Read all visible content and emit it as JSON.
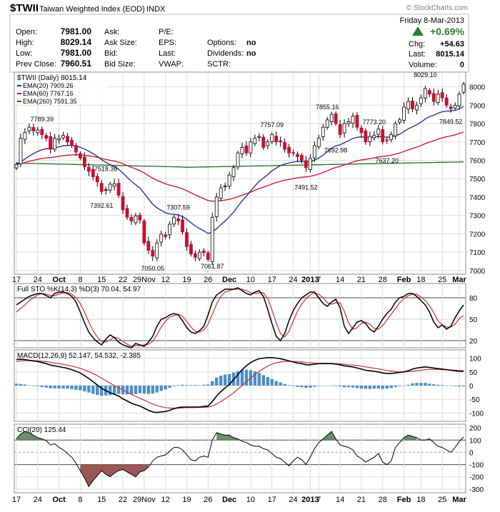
{
  "header": {
    "symbol": "$TWII",
    "name": "Taiwan Weighted Index (EOD)",
    "exchange": "INDX",
    "copyright": "© StockCharts.com",
    "date": "Friday   8-Mar-2013",
    "change_pct": "+0.69%",
    "chg_label": "Chg:",
    "chg_value": "+54.63",
    "last_label": "Last:",
    "last_value": "8015.14",
    "volume_label": "Volume:",
    "volume_value": "0"
  },
  "quote": {
    "rows": [
      {
        "l1": "Open:",
        "v1": "7981.00",
        "l2": "Ask:",
        "v2": "",
        "l3": "P/E:",
        "v3": "",
        "l4": "",
        "v4": ""
      },
      {
        "l1": "High:",
        "v1": "8029.14",
        "l2": "Ask Size:",
        "v2": "",
        "l3": "EPS:",
        "v3": "",
        "l4": "Options:",
        "v4": "no"
      },
      {
        "l1": "Low:",
        "v1": "7981.00",
        "l2": "Bid:",
        "v2": "",
        "l3": "Last:",
        "v3": "",
        "l4": "Dividends:",
        "v4": "no"
      },
      {
        "l1": "Prev Close:",
        "v1": "7960.51",
        "l2": "Bid Size:",
        "v2": "",
        "l3": "VWAP:",
        "v3": "",
        "l4": "SCTR:",
        "v4": ""
      }
    ]
  },
  "colors": {
    "up": "#ffffff",
    "down": "#c8102e",
    "ema20": "#1f2a8c",
    "ema60": "#c8102e",
    "ema260": "#1d6e1d",
    "sto_k": "#000000",
    "sto_d": "#d0302a",
    "macd": "#000000",
    "signal": "#d0302a",
    "hist": "#4b8ec8",
    "cci_pos": "#4f7d4f",
    "cci_neg": "#8b3a3a",
    "arrow": "#2e7d32"
  },
  "chart_data": [
    {
      "type": "candlestick",
      "title": "$TWII (Daily) 8015.14",
      "legend": [
        {
          "name": "EMA(20) 7909.26",
          "color": "#1f2a8c"
        },
        {
          "name": "EMA(60) 7767.16",
          "color": "#c8102e"
        },
        {
          "name": "EMA(260) 7591.35",
          "color": "#1d6e1d"
        }
      ],
      "ylim": [
        6980,
        8080
      ],
      "yticks": [
        7000,
        7100,
        7200,
        7300,
        7400,
        7500,
        7600,
        7700,
        7800,
        7900,
        8000
      ],
      "x_tick_labels": [
        {
          "i": 0,
          "label": "17"
        },
        {
          "i": 5,
          "label": "24"
        },
        {
          "i": 10,
          "label": "Oct"
        },
        {
          "i": 15,
          "label": "8"
        },
        {
          "i": 20,
          "label": "15"
        },
        {
          "i": 25,
          "label": "22"
        },
        {
          "i": 30,
          "label": "29Nov"
        },
        {
          "i": 35,
          "label": "12"
        },
        {
          "i": 40,
          "label": "19"
        },
        {
          "i": 45,
          "label": "26"
        },
        {
          "i": 50,
          "label": "Dec"
        },
        {
          "i": 55,
          "label": "10"
        },
        {
          "i": 60,
          "label": "17"
        },
        {
          "i": 65,
          "label": "24"
        },
        {
          "i": 69,
          "label": "2013"
        },
        {
          "i": 71,
          "label": "7"
        },
        {
          "i": 76,
          "label": "14"
        },
        {
          "i": 81,
          "label": "21"
        },
        {
          "i": 86,
          "label": "28"
        },
        {
          "i": 91,
          "label": "Feb"
        },
        {
          "i": 95,
          "label": "18"
        },
        {
          "i": 100,
          "label": "25"
        },
        {
          "i": 104,
          "label": "Mar"
        }
      ],
      "annotations": [
        {
          "i": 6,
          "price": 7789.39,
          "label": "7789.39",
          "pos": "above"
        },
        {
          "i": 21,
          "price": 7518.36,
          "label": "7518.36",
          "pos": "above"
        },
        {
          "i": 20,
          "price": 7392.61,
          "label": "7392.61",
          "pos": "below"
        },
        {
          "i": 38,
          "price": 7307.59,
          "label": "7307.59",
          "pos": "above"
        },
        {
          "i": 32,
          "price": 7050.05,
          "label": "7050.05",
          "pos": "below"
        },
        {
          "i": 46,
          "price": 7061.87,
          "label": "7061.87",
          "pos": "below"
        },
        {
          "i": 60,
          "price": 7757.09,
          "label": "7757.09",
          "pos": "above"
        },
        {
          "i": 68,
          "price": 7491.52,
          "label": "7491.52",
          "pos": "below"
        },
        {
          "i": 73,
          "price": 7855.16,
          "label": "7855.16",
          "pos": "above"
        },
        {
          "i": 75,
          "price": 7692.98,
          "label": "7692.98",
          "pos": "below"
        },
        {
          "i": 84,
          "price": 7773.2,
          "label": "7773.20",
          "pos": "above"
        },
        {
          "i": 87,
          "price": 7637.2,
          "label": "7637.20",
          "pos": "below"
        },
        {
          "i": 96,
          "price": 8029.1,
          "label": "8029.10",
          "pos": "above"
        },
        {
          "i": 102,
          "price": 7849.52,
          "label": "7849.52",
          "pos": "below"
        }
      ],
      "closes": [
        7578,
        7720,
        7752,
        7780,
        7760,
        7765,
        7740,
        7720,
        7660,
        7720,
        7718,
        7735,
        7700,
        7680,
        7645,
        7612,
        7565,
        7540,
        7510,
        7482,
        7430,
        7440,
        7470,
        7472,
        7410,
        7330,
        7290,
        7270,
        7298,
        7275,
        7150,
        7110,
        7078,
        7150,
        7198,
        7185,
        7252,
        7290,
        7270,
        7210,
        7130,
        7090,
        7072,
        7100,
        7098,
        7060,
        7290,
        7400,
        7450,
        7460,
        7520,
        7560,
        7640,
        7670,
        7640,
        7700,
        7720,
        7730,
        7670,
        7700,
        7740,
        7700,
        7700,
        7660,
        7640,
        7640,
        7620,
        7600,
        7560,
        7610,
        7680,
        7720,
        7780,
        7820,
        7850,
        7800,
        7740,
        7800,
        7810,
        7840,
        7780,
        7750,
        7700,
        7730,
        7735,
        7770,
        7700,
        7710,
        7740,
        7800,
        7820,
        7890,
        7920,
        7880,
        7900,
        7940,
        7990,
        7960,
        7920,
        7960,
        7940,
        7900,
        7880,
        7900,
        7960,
        8015
      ]
    },
    {
      "type": "line",
      "title": "Full STO %K(14,3) %D(3) 70.04, 54.97",
      "series": [
        {
          "name": "%K"
        },
        {
          "name": "%D"
        }
      ],
      "ylim": [
        10,
        100
      ],
      "yticks": [
        20,
        50,
        80
      ],
      "k": [
        70,
        74,
        78,
        82,
        84,
        86,
        86,
        83,
        80,
        86,
        88,
        88,
        86,
        82,
        74,
        60,
        45,
        32,
        24,
        18,
        14,
        22,
        28,
        24,
        18,
        14,
        12,
        10,
        16,
        14,
        12,
        18,
        26,
        40,
        50,
        52,
        56,
        58,
        56,
        48,
        38,
        32,
        30,
        34,
        40,
        56,
        74,
        84,
        88,
        92,
        92,
        92,
        94,
        90,
        86,
        84,
        88,
        90,
        82,
        64,
        44,
        26,
        20,
        30,
        48,
        62,
        72,
        80,
        84,
        88,
        88,
        80,
        72,
        68,
        74,
        78,
        66,
        40,
        30,
        38,
        46,
        48,
        44,
        36,
        32,
        40,
        50,
        58,
        64,
        74,
        80,
        82,
        86,
        86,
        82,
        76,
        70,
        60,
        46,
        38,
        42,
        36,
        40,
        52,
        62,
        70
      ],
      "d": [
        60,
        65,
        70,
        76,
        80,
        84,
        86,
        85,
        83,
        83,
        85,
        87,
        87,
        85,
        80,
        72,
        60,
        46,
        34,
        25,
        19,
        18,
        21,
        25,
        23,
        19,
        15,
        12,
        13,
        13,
        14,
        15,
        19,
        28,
        39,
        47,
        53,
        55,
        57,
        54,
        47,
        39,
        33,
        32,
        35,
        43,
        57,
        71,
        82,
        88,
        90,
        92,
        92,
        92,
        90,
        87,
        86,
        87,
        87,
        79,
        63,
        45,
        30,
        25,
        33,
        47,
        61,
        71,
        79,
        84,
        87,
        85,
        80,
        73,
        71,
        73,
        73,
        61,
        45,
        36,
        38,
        44,
        46,
        43,
        37,
        36,
        41,
        49,
        57,
        65,
        73,
        79,
        83,
        85,
        85,
        81,
        76,
        69,
        59,
        48,
        42,
        39,
        39,
        43,
        51,
        55
      ]
    },
    {
      "type": "line",
      "title": "MACD(12,26,9) 52.147, 54.532, -2.385",
      "series": [
        {
          "name": "MACD"
        },
        {
          "name": "Signal"
        },
        {
          "name": "Histogram"
        }
      ],
      "ylim": [
        -130,
        130
      ],
      "yticks": [
        -100,
        -50,
        0,
        50,
        100
      ],
      "macd": [
        95,
        96,
        95,
        92,
        90,
        88,
        84,
        80,
        75,
        72,
        69,
        66,
        63,
        58,
        52,
        46,
        36,
        26,
        14,
        2,
        -10,
        -18,
        -26,
        -32,
        -38,
        -48,
        -56,
        -64,
        -70,
        -74,
        -82,
        -90,
        -96,
        -98,
        -96,
        -94,
        -90,
        -84,
        -80,
        -78,
        -78,
        -78,
        -78,
        -78,
        -76,
        -74,
        -58,
        -38,
        -22,
        -8,
        4,
        22,
        40,
        58,
        72,
        84,
        92,
        98,
        100,
        102,
        102,
        100,
        98,
        94,
        90,
        86,
        82,
        80,
        76,
        76,
        78,
        80,
        80,
        80,
        80,
        78,
        76,
        72,
        70,
        68,
        64,
        60,
        56,
        54,
        52,
        50,
        46,
        44,
        44,
        46,
        48,
        50,
        54,
        60,
        64,
        66,
        68,
        66,
        64,
        62,
        60,
        58,
        56,
        54,
        52,
        52
      ],
      "signal": [
        88,
        90,
        91,
        91,
        91,
        90,
        89,
        87,
        85,
        82,
        80,
        77,
        74,
        71,
        67,
        63,
        57,
        51,
        44,
        36,
        27,
        18,
        9,
        0,
        -8,
        -16,
        -24,
        -32,
        -39,
        -46,
        -53,
        -60,
        -67,
        -73,
        -77,
        -80,
        -82,
        -82,
        -82,
        -81,
        -80,
        -80,
        -80,
        -79,
        -79,
        -78,
        -74,
        -67,
        -58,
        -48,
        -38,
        -26,
        -13,
        0,
        14,
        28,
        40,
        52,
        62,
        71,
        78,
        83,
        86,
        88,
        88,
        88,
        87,
        86,
        84,
        83,
        82,
        81,
        81,
        81,
        81,
        80,
        79,
        78,
        76,
        75,
        73,
        71,
        68,
        66,
        63,
        61,
        58,
        55,
        53,
        51,
        50,
        50,
        51,
        52,
        54,
        56,
        58,
        59,
        59,
        59,
        58,
        58,
        57,
        56,
        55,
        54.5
      ]
    },
    {
      "type": "area",
      "title": "CCI(20) 125.44",
      "ylim": [
        -330,
        230
      ],
      "yticks": [
        -300,
        -200,
        -100,
        0,
        100,
        200
      ],
      "values": [
        110,
        150,
        170,
        160,
        140,
        120,
        110,
        95,
        60,
        70,
        40,
        20,
        -10,
        -40,
        -90,
        -150,
        -210,
        -280,
        -230,
        -190,
        -150,
        -180,
        -200,
        -170,
        -150,
        -140,
        -160,
        -180,
        -200,
        -160,
        -150,
        -120,
        -70,
        -40,
        -30,
        -20,
        10,
        40,
        40,
        20,
        -20,
        -60,
        -70,
        -40,
        -30,
        -40,
        100,
        160,
        150,
        140,
        140,
        120,
        110,
        90,
        80,
        60,
        50,
        50,
        30,
        20,
        -10,
        -40,
        -50,
        -80,
        -110,
        -70,
        -40,
        -60,
        -100,
        -40,
        30,
        80,
        110,
        140,
        170,
        110,
        60,
        50,
        40,
        20,
        -30,
        -50,
        -80,
        -60,
        -40,
        -10,
        -80,
        -100,
        -70,
        40,
        80,
        120,
        140,
        130,
        120,
        100,
        100,
        110,
        80,
        50,
        40,
        20,
        0,
        40,
        90,
        125
      ]
    }
  ]
}
